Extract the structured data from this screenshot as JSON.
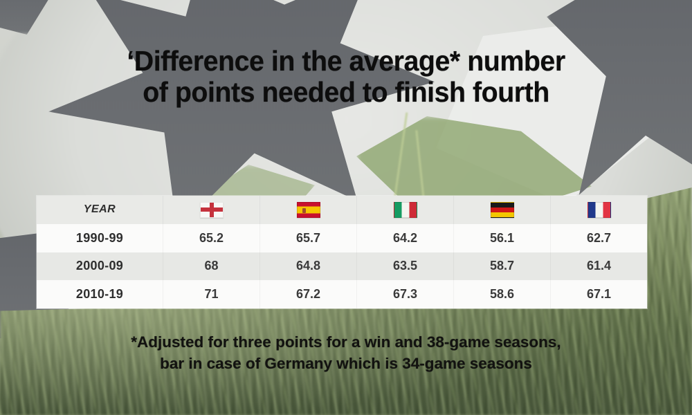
{
  "title": {
    "line1": "‘Difference in the average* number",
    "line2": "of points needed to finish fourth"
  },
  "table": {
    "year_header": "YEAR",
    "columns": [
      "England",
      "Spain",
      "Italy",
      "Germany",
      "France"
    ],
    "rows": [
      {
        "year": "1990-99",
        "values": [
          "65.2",
          "65.7",
          "64.2",
          "56.1",
          "62.7"
        ]
      },
      {
        "year": "2000-09",
        "values": [
          "68",
          "64.8",
          "63.5",
          "58.7",
          "61.4"
        ]
      },
      {
        "year": "2010-19",
        "values": [
          "71",
          "67.2",
          "67.3",
          "58.6",
          "67.1"
        ]
      }
    ]
  },
  "footnote": {
    "line1": "*Adjusted for three points for a win and 38-game seasons,",
    "line2": "bar in case of Germany which is 34-game seasons"
  },
  "colors": {
    "england_red": "#c5323d",
    "spain_red": "#c8102e",
    "spain_yellow": "#f6c500",
    "italy_green": "#169b62",
    "italy_red": "#ce2b37",
    "germany_black": "#191919",
    "germany_red": "#cf1717",
    "germany_gold": "#f3c700",
    "france_blue": "#20398b",
    "france_red": "#e23443",
    "table_row_light": "#fbfbfa",
    "table_row_gray": "#e7e8e5",
    "title_text": "#0d0d0d"
  },
  "chart_data": {
    "type": "table",
    "title": "‘Difference in the average* number of points needed to finish fourth",
    "row_header": "YEAR",
    "categories": [
      "1990-99",
      "2000-09",
      "2010-19"
    ],
    "series": [
      {
        "name": "England",
        "values": [
          65.2,
          68,
          71
        ]
      },
      {
        "name": "Spain",
        "values": [
          65.7,
          64.8,
          67.2
        ]
      },
      {
        "name": "Italy",
        "values": [
          64.2,
          63.5,
          67.3
        ]
      },
      {
        "name": "Germany",
        "values": [
          56.1,
          58.7,
          58.6
        ]
      },
      {
        "name": "France",
        "values": [
          62.7,
          61.4,
          67.1
        ]
      }
    ],
    "footnote": "*Adjusted for three points for a win and 38-game seasons, bar in case of Germany which is 34-game seasons",
    "legend_position": "table-header-flags",
    "grid": false
  }
}
